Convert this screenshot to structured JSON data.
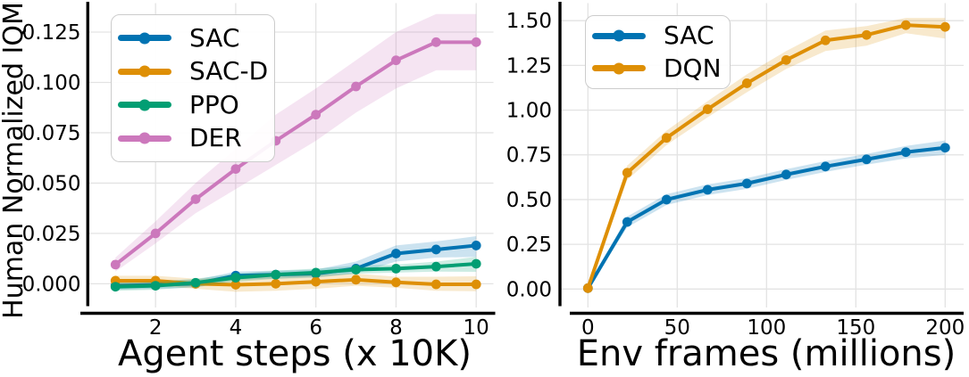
{
  "figure": {
    "background": "#ffffff",
    "grid_color": "#e3e3e3",
    "spine_color": "#000000"
  },
  "chart_data": [
    {
      "type": "line",
      "title": "",
      "xlabel": "Agent steps (x 10K)",
      "ylabel": "Human Normalized IQM",
      "grid": true,
      "legend_position": "upper left",
      "x": [
        1,
        2,
        3,
        4,
        5,
        6,
        7,
        8,
        9,
        10
      ],
      "xtick_values": [
        2,
        4,
        6,
        8,
        10
      ],
      "xtick_labels": [
        "2",
        "4",
        "6",
        "8",
        "10"
      ],
      "ytick_values": [
        0.0,
        0.025,
        0.05,
        0.075,
        0.1,
        0.125
      ],
      "ytick_labels": [
        "0.000",
        "0.025",
        "0.050",
        "0.075",
        "0.100",
        "0.125"
      ],
      "xlim": [
        0.31,
        10.43
      ],
      "ylim": [
        -0.0118,
        0.1394
      ],
      "series": [
        {
          "name": "SAC",
          "color": "#0173B2",
          "values": [
            -0.001,
            -0.0005,
            0.0,
            0.004,
            0.0045,
            0.005,
            0.0075,
            0.015,
            0.017,
            0.019
          ],
          "band_low": [
            -0.003,
            -0.0025,
            -0.002,
            0.002,
            0.0025,
            0.003,
            0.005,
            0.011,
            0.013,
            0.0133
          ],
          "band_high": [
            0.001,
            0.0015,
            0.002,
            0.006,
            0.0065,
            0.007,
            0.011,
            0.019,
            0.021,
            0.0236
          ]
        },
        {
          "name": "SAC-D",
          "color": "#DE8F05",
          "values": [
            0.0015,
            0.0015,
            0.0,
            -0.0005,
            0.0,
            0.001,
            0.002,
            0.0007,
            -0.0003,
            -0.0003
          ],
          "band_low": [
            -0.001,
            -0.001,
            -0.0025,
            -0.004,
            -0.0035,
            -0.0025,
            -0.001,
            -0.002,
            -0.0035,
            -0.0037
          ],
          "band_high": [
            0.004,
            0.004,
            0.0025,
            0.003,
            0.0035,
            0.0045,
            0.005,
            0.0035,
            0.0035,
            0.0037
          ]
        },
        {
          "name": "PPO",
          "color": "#029E73",
          "values": [
            -0.0015,
            -0.001,
            0.0005,
            0.003,
            0.0045,
            0.0055,
            0.007,
            0.0075,
            0.0085,
            0.0099
          ],
          "band_low": [
            -0.0035,
            -0.003,
            -0.0015,
            0.001,
            0.0025,
            0.0035,
            0.005,
            0.0055,
            0.006,
            0.0059
          ],
          "band_high": [
            0.0005,
            0.001,
            0.0025,
            0.005,
            0.0065,
            0.0075,
            0.009,
            0.0095,
            0.011,
            0.0133
          ]
        },
        {
          "name": "DER",
          "color": "#CC78BC",
          "values": [
            0.0095,
            0.025,
            0.042,
            0.057,
            0.071,
            0.084,
            0.098,
            0.111,
            0.12,
            0.12
          ],
          "band_low": [
            0.006,
            0.02,
            0.035,
            0.047,
            0.059,
            0.071,
            0.085,
            0.097,
            0.106,
            0.106
          ],
          "band_high": [
            0.013,
            0.031,
            0.05,
            0.067,
            0.084,
            0.097,
            0.111,
            0.125,
            0.134,
            0.134
          ]
        }
      ]
    },
    {
      "type": "line",
      "title": "",
      "xlabel": "Env frames (millions)",
      "ylabel": "",
      "grid": true,
      "legend_position": "upper left",
      "x": [
        0,
        22,
        44,
        67,
        89,
        111,
        133,
        156,
        178,
        200
      ],
      "xtick_values": [
        0,
        50,
        100,
        150,
        200
      ],
      "xtick_labels": [
        "0",
        "50",
        "100",
        "150",
        "200"
      ],
      "ytick_values": [
        0.0,
        0.25,
        0.5,
        0.75,
        1.0,
        1.25,
        1.5
      ],
      "ytick_labels": [
        "0.00",
        "0.25",
        "0.50",
        "0.75",
        "1.00",
        "1.25",
        "1.50"
      ],
      "xlim": [
        -15.65,
        210.35
      ],
      "ylim": [
        -0.103,
        1.598
      ],
      "series": [
        {
          "name": "SAC",
          "color": "#0173B2",
          "values": [
            0.005,
            0.375,
            0.5,
            0.555,
            0.59,
            0.64,
            0.685,
            0.725,
            0.765,
            0.79
          ],
          "band_low": [
            0.0,
            0.345,
            0.47,
            0.525,
            0.56,
            0.61,
            0.655,
            0.695,
            0.73,
            0.75
          ],
          "band_high": [
            0.01,
            0.405,
            0.53,
            0.585,
            0.62,
            0.67,
            0.715,
            0.755,
            0.8,
            0.83
          ]
        },
        {
          "name": "DQN",
          "color": "#DE8F05",
          "values": [
            0.005,
            0.65,
            0.845,
            1.005,
            1.15,
            1.28,
            1.39,
            1.42,
            1.475,
            1.465
          ],
          "band_low": [
            0.0,
            0.61,
            0.805,
            0.96,
            1.1,
            1.23,
            1.33,
            1.36,
            1.43,
            1.4
          ],
          "band_high": [
            0.01,
            0.69,
            0.885,
            1.05,
            1.2,
            1.33,
            1.445,
            1.47,
            1.515,
            1.515
          ]
        }
      ]
    }
  ]
}
